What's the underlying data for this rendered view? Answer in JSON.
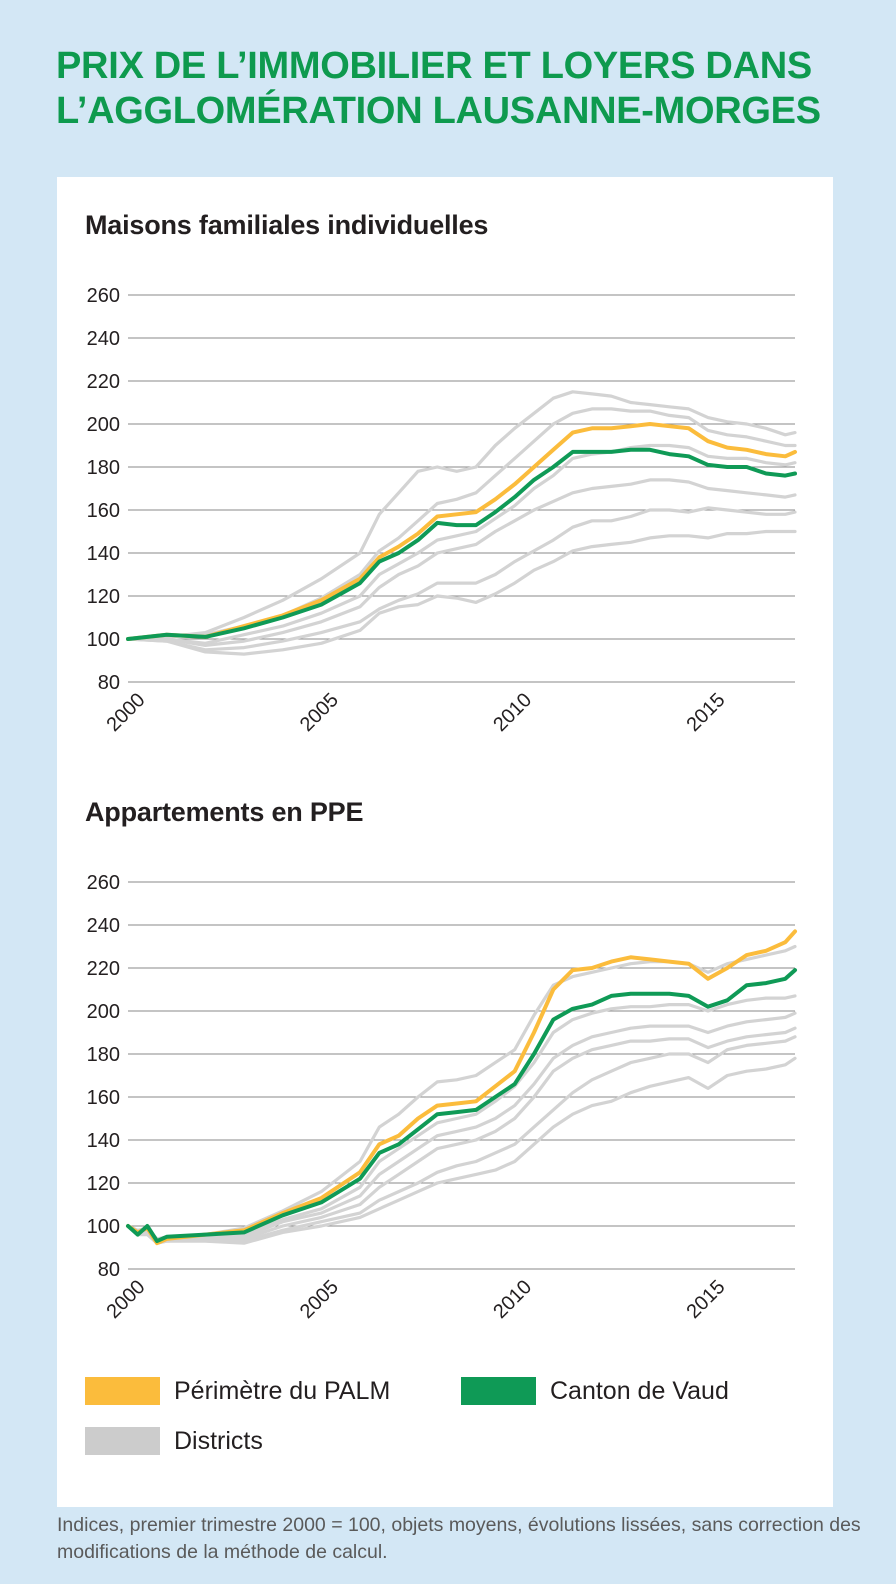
{
  "title_lines": [
    "PRIX DE L’IMMOBILIER ET LOYERS DANS",
    "L’AGGLOMÉRATION LAUSANNE-MORGES"
  ],
  "footnote": "Indices, premier trimestre 2000 = 100, objets moyens, évolutions lissées, sans correction des modifications de la méthode de calcul.",
  "legend": [
    {
      "label": "Périmètre du PALM",
      "color": "#fbbc3c"
    },
    {
      "label": "Canton de Vaud",
      "color": "#0f9a56"
    },
    {
      "label": "Districts",
      "color": "#cccccc"
    }
  ],
  "chart_data": [
    {
      "type": "line",
      "title": "Maisons familiales individuelles",
      "xlim": [
        2000,
        2017.25
      ],
      "ylim": [
        80,
        260
      ],
      "yticks": [
        80,
        100,
        120,
        140,
        160,
        180,
        200,
        220,
        240,
        260
      ],
      "xticks": [
        2000,
        2005,
        2010,
        2015
      ],
      "grid": true,
      "x": [
        2000,
        2001,
        2002,
        2003,
        2004,
        2005,
        2006,
        2006.5,
        2007,
        2007.5,
        2008,
        2008.5,
        2009,
        2009.5,
        2010,
        2010.5,
        2011,
        2011.5,
        2012,
        2012.5,
        2013,
        2013.5,
        2014,
        2014.5,
        2015,
        2015.5,
        2016,
        2016.5,
        2017,
        2017.25
      ],
      "series": [
        {
          "name": "Périmètre du PALM",
          "color": "#fbbc3c",
          "values": [
            100,
            102,
            101,
            106,
            111,
            118,
            128,
            138,
            143,
            149,
            157,
            158,
            159,
            165,
            172,
            180,
            188,
            196,
            198,
            198,
            199,
            200,
            199,
            198,
            192,
            189,
            188,
            186,
            185,
            187
          ]
        },
        {
          "name": "Canton de Vaud",
          "color": "#0f9a56",
          "values": [
            100,
            102,
            101,
            105,
            110,
            116,
            126,
            136,
            140,
            146,
            154,
            153,
            153,
            159,
            166,
            174,
            180,
            187,
            187,
            187,
            188,
            188,
            186,
            185,
            181,
            180,
            180,
            177,
            176,
            177
          ]
        },
        {
          "color": "#d3d3d3",
          "values": [
            100,
            101,
            103,
            110,
            118,
            128,
            140,
            158,
            168,
            178,
            180,
            178,
            180,
            190,
            198,
            205,
            212,
            215,
            214,
            213,
            210,
            209,
            208,
            207,
            203,
            201,
            200,
            198,
            195,
            196
          ]
        },
        {
          "color": "#d3d3d3",
          "values": [
            100,
            101,
            102,
            106,
            111,
            119,
            130,
            141,
            147,
            155,
            163,
            165,
            168,
            176,
            184,
            192,
            200,
            205,
            207,
            207,
            206,
            206,
            204,
            203,
            197,
            195,
            194,
            192,
            190,
            190
          ]
        },
        {
          "color": "#d3d3d3",
          "values": [
            100,
            100,
            98,
            102,
            106,
            112,
            120,
            130,
            135,
            140,
            146,
            148,
            150,
            156,
            162,
            170,
            176,
            184,
            186,
            187,
            189,
            190,
            190,
            189,
            185,
            184,
            184,
            182,
            181,
            182
          ]
        },
        {
          "color": "#d3d3d3",
          "values": [
            100,
            100,
            97,
            99,
            103,
            108,
            115,
            124,
            130,
            134,
            140,
            142,
            144,
            150,
            155,
            160,
            164,
            168,
            170,
            171,
            172,
            174,
            174,
            173,
            170,
            169,
            168,
            167,
            166,
            167
          ]
        },
        {
          "color": "#d3d3d3",
          "values": [
            100,
            99,
            95,
            96,
            99,
            103,
            108,
            114,
            118,
            121,
            126,
            126,
            126,
            130,
            136,
            141,
            146,
            152,
            155,
            155,
            157,
            160,
            160,
            159,
            161,
            160,
            159,
            158,
            158,
            159
          ]
        },
        {
          "color": "#d3d3d3",
          "values": [
            100,
            99,
            94,
            93,
            95,
            98,
            104,
            112,
            115,
            116,
            120,
            119,
            117,
            121,
            126,
            132,
            136,
            141,
            143,
            144,
            145,
            147,
            148,
            148,
            147,
            149,
            149,
            150,
            150,
            150
          ]
        }
      ]
    },
    {
      "type": "line",
      "title": "Appartements en PPE",
      "xlim": [
        2000,
        2017.25
      ],
      "ylim": [
        80,
        260
      ],
      "yticks": [
        80,
        100,
        120,
        140,
        160,
        180,
        200,
        220,
        240,
        260
      ],
      "xticks": [
        2000,
        2005,
        2010,
        2015
      ],
      "grid": true,
      "x": [
        2000,
        2000.25,
        2000.5,
        2000.75,
        2001,
        2002,
        2003,
        2004,
        2005,
        2006,
        2006.5,
        2007,
        2007.5,
        2008,
        2008.5,
        2009,
        2009.5,
        2010,
        2010.5,
        2011,
        2011.5,
        2012,
        2012.5,
        2013,
        2013.5,
        2014,
        2014.5,
        2015,
        2015.5,
        2016,
        2016.5,
        2017,
        2017.25
      ],
      "series": [
        {
          "name": "Périmètre du PALM",
          "color": "#fbbc3c",
          "values": [
            100,
            97,
            99,
            92,
            94,
            96,
            98,
            106,
            113,
            125,
            138,
            142,
            150,
            156,
            157,
            158,
            165,
            172,
            190,
            210,
            219,
            220,
            223,
            225,
            224,
            223,
            222,
            215,
            220,
            226,
            228,
            232,
            237
          ]
        },
        {
          "name": "Canton de Vaud",
          "color": "#0f9a56",
          "values": [
            100,
            96,
            100,
            93,
            95,
            96,
            97,
            105,
            111,
            122,
            134,
            138,
            145,
            152,
            153,
            154,
            160,
            166,
            180,
            196,
            201,
            203,
            207,
            208,
            208,
            208,
            207,
            202,
            205,
            212,
            213,
            215,
            219
          ]
        },
        {
          "color": "#d3d3d3",
          "values": [
            100,
            98,
            99,
            94,
            95,
            96,
            99,
            107,
            116,
            130,
            146,
            152,
            160,
            167,
            168,
            170,
            176,
            182,
            198,
            212,
            216,
            218,
            220,
            222,
            223,
            223,
            222,
            218,
            222,
            224,
            226,
            228,
            230
          ]
        },
        {
          "color": "#d3d3d3",
          "values": [
            100,
            97,
            98,
            93,
            94,
            95,
            96,
            103,
            108,
            118,
            130,
            136,
            142,
            148,
            150,
            152,
            158,
            165,
            176,
            190,
            196,
            199,
            201,
            202,
            202,
            203,
            203,
            200,
            203,
            205,
            206,
            206,
            207
          ]
        },
        {
          "color": "#d3d3d3",
          "values": [
            100,
            97,
            98,
            93,
            94,
            95,
            95,
            102,
            106,
            114,
            124,
            130,
            136,
            142,
            144,
            146,
            150,
            156,
            166,
            178,
            184,
            188,
            190,
            192,
            193,
            193,
            193,
            190,
            193,
            195,
            196,
            197,
            199
          ]
        },
        {
          "color": "#d3d3d3",
          "values": [
            100,
            97,
            97,
            93,
            94,
            95,
            94,
            100,
            104,
            110,
            118,
            124,
            130,
            136,
            138,
            140,
            144,
            150,
            160,
            172,
            178,
            182,
            184,
            186,
            186,
            187,
            187,
            183,
            186,
            188,
            189,
            190,
            192
          ]
        },
        {
          "color": "#d3d3d3",
          "values": [
            100,
            96,
            97,
            92,
            93,
            94,
            93,
            98,
            102,
            106,
            112,
            116,
            120,
            125,
            128,
            130,
            134,
            138,
            146,
            154,
            162,
            168,
            172,
            176,
            178,
            180,
            180,
            176,
            182,
            184,
            185,
            186,
            188
          ]
        },
        {
          "color": "#d3d3d3",
          "values": [
            100,
            96,
            96,
            92,
            93,
            93,
            92,
            97,
            100,
            104,
            108,
            112,
            116,
            120,
            122,
            124,
            126,
            130,
            138,
            146,
            152,
            156,
            158,
            162,
            165,
            167,
            169,
            164,
            170,
            172,
            173,
            175,
            178
          ]
        }
      ]
    }
  ]
}
